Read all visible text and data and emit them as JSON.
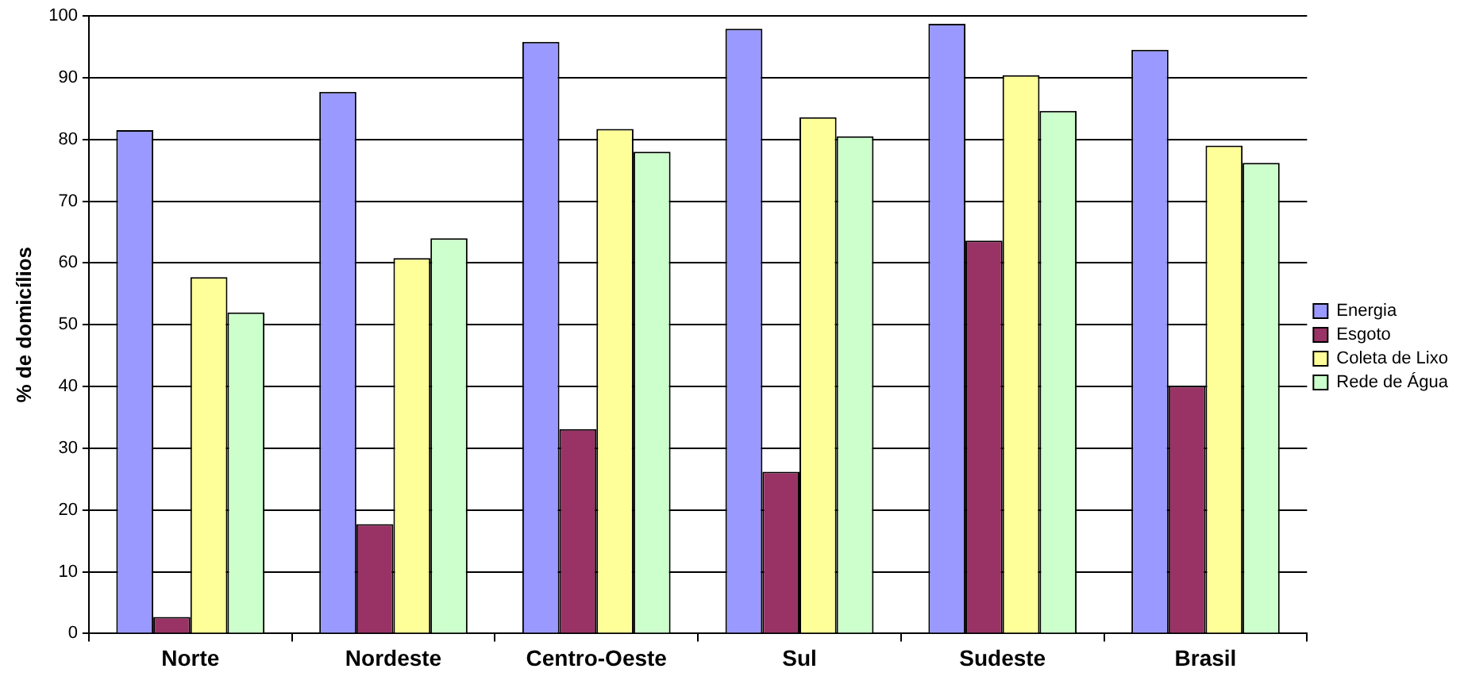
{
  "chart_data": {
    "type": "bar",
    "ylabel": "% de domicílios",
    "categories": [
      "Norte",
      "Nordeste",
      "Centro-Oeste",
      "Sul",
      "Sudeste",
      "Brasil"
    ],
    "series": [
      {
        "name": "Energia",
        "color": "#9999ff",
        "values": [
          81.5,
          87.7,
          95.8,
          97.9,
          98.7,
          94.5
        ]
      },
      {
        "name": "Esgoto",
        "color": "#993366",
        "values": [
          2.7,
          17.7,
          33.1,
          26.2,
          63.6,
          40.1
        ]
      },
      {
        "name": "Coleta de Lixo",
        "color": "#ffff99",
        "values": [
          57.7,
          60.8,
          81.7,
          83.6,
          90.4,
          79.0
        ]
      },
      {
        "name": "Rede de Água",
        "color": "#ccffcc",
        "values": [
          52,
          64,
          78,
          80.5,
          84.6,
          76.2
        ]
      }
    ],
    "ylim": [
      0,
      100
    ],
    "yticks": [
      0,
      10,
      20,
      30,
      40,
      50,
      60,
      70,
      80,
      90,
      100
    ],
    "grid": "y",
    "legend": "right"
  }
}
